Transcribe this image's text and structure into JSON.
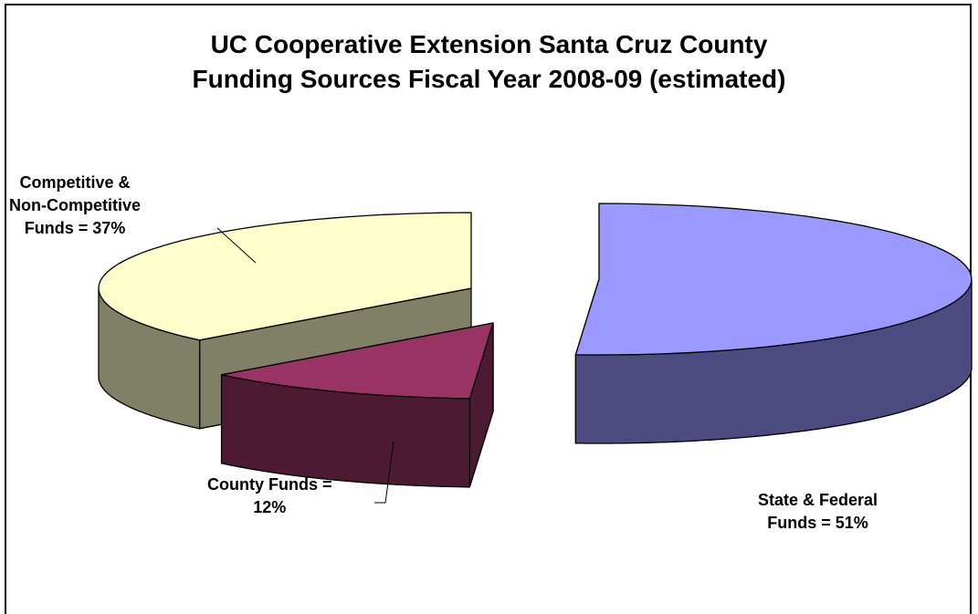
{
  "chart_data": {
    "type": "pie",
    "title_line1": "UC Cooperative Extension Santa Cruz County",
    "title_line2": "Funding Sources Fiscal Year 2008-09 (estimated)",
    "slices": [
      {
        "label_lines": [
          "State & Federal",
          "Funds = 51%"
        ],
        "value": 51,
        "top_color": "#9999ff",
        "side_color": "#4b4b80"
      },
      {
        "label_lines": [
          "County Funds =",
          "12%"
        ],
        "value": 12,
        "top_color": "#993366",
        "side_color": "#4d1a33"
      },
      {
        "label_lines": [
          "Competitive &",
          "Non-Competitive",
          "Funds = 37%"
        ],
        "value": 37,
        "top_color": "#ffffcc",
        "side_color": "#808066"
      }
    ]
  }
}
